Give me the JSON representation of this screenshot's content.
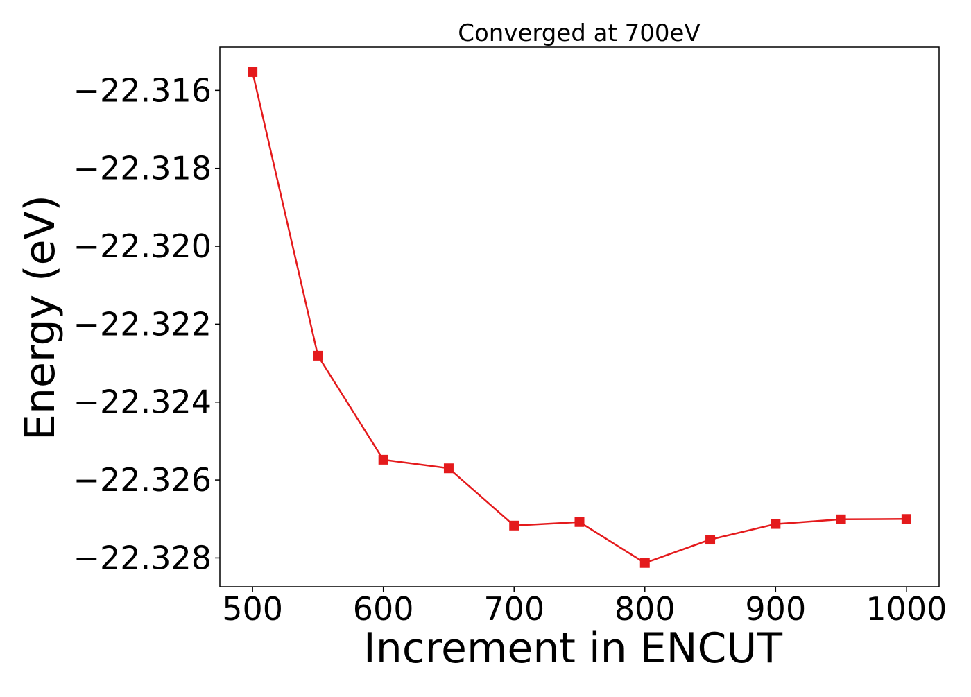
{
  "chart_data": {
    "type": "line",
    "title": "Converged at 700eV",
    "xlabel": "Increment in ENCUT",
    "ylabel": "Energy (eV)",
    "xlim": [
      475,
      1025
    ],
    "ylim": [
      -22.32874,
      -22.31489
    ],
    "x_ticks": [
      500,
      600,
      700,
      800,
      900,
      1000
    ],
    "y_ticks": [
      -22.316,
      -22.318,
      -22.32,
      -22.322,
      -22.324,
      -22.326,
      -22.328
    ],
    "y_tick_labels": [
      "−22.316",
      "−22.318",
      "−22.320",
      "−22.322",
      "−22.324",
      "−22.326",
      "−22.328"
    ],
    "grid": false,
    "legend": "none",
    "series": [
      {
        "color": "#e41a1c",
        "marker": "square",
        "x": [
          500,
          550,
          600,
          650,
          700,
          750,
          800,
          850,
          900,
          950,
          1000
        ],
        "y": [
          -22.31553,
          -22.32281,
          -22.32548,
          -22.3257,
          -22.32717,
          -22.32708,
          -22.32813,
          -22.32753,
          -22.32713,
          -22.32701,
          -22.327
        ]
      }
    ]
  }
}
